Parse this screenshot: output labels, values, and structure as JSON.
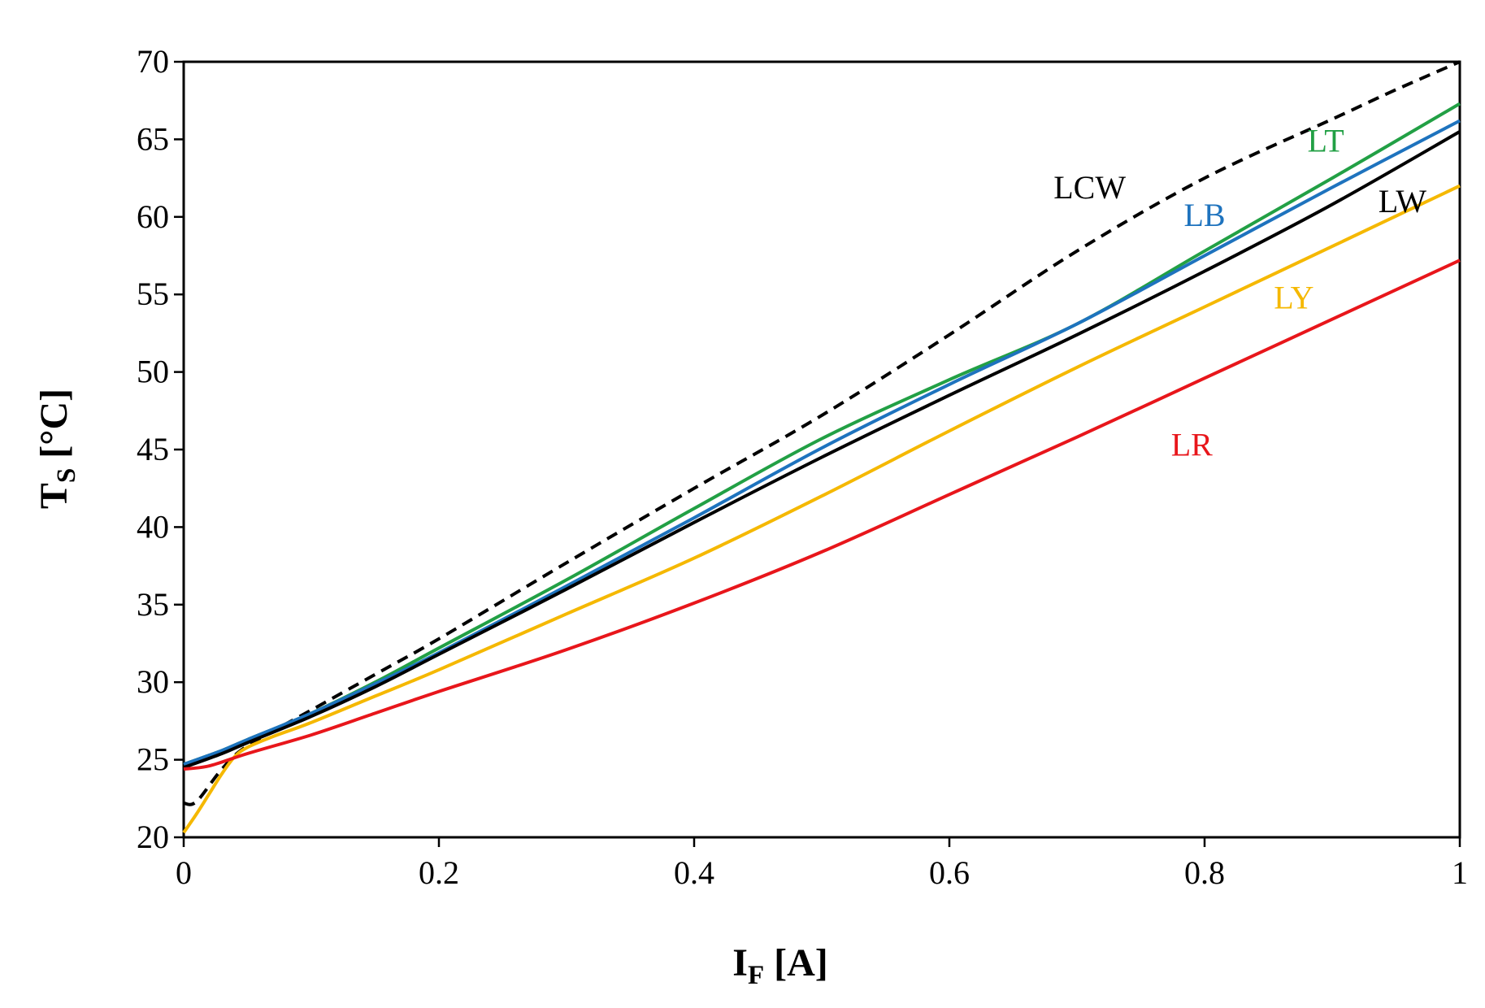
{
  "chart_data": {
    "type": "line",
    "title": "",
    "xlabel": {
      "main": "I",
      "sub": "F",
      "unit": "[A]"
    },
    "ylabel": {
      "main": "T",
      "sub": "S",
      "unit": "[°C]"
    },
    "xlim": [
      0,
      1
    ],
    "ylim": [
      20,
      70
    ],
    "xticks": [
      0,
      0.2,
      0.4,
      0.6,
      0.8,
      1
    ],
    "xtick_labels": [
      "0",
      "0.2",
      "0.4",
      "0.6",
      "0.8",
      "1"
    ],
    "yticks": [
      20,
      25,
      30,
      35,
      40,
      45,
      50,
      55,
      60,
      65,
      70
    ],
    "ytick_labels": [
      "20",
      "25",
      "30",
      "35",
      "40",
      "45",
      "50",
      "55",
      "60",
      "65",
      "70"
    ],
    "grid": false,
    "legend": "none (inline series labels)",
    "series": [
      {
        "name": "LCW",
        "color": "#000000",
        "dashed": true,
        "label_at": [
          0.71,
          61.2
        ],
        "x": [
          0,
          0.01,
          0.03,
          0.05,
          0.1,
          0.15,
          0.2,
          0.3,
          0.4,
          0.5,
          0.6,
          0.7,
          0.8,
          0.9,
          0.95,
          1
        ],
        "y": [
          22.2,
          22.3,
          24.4,
          25.9,
          28.2,
          30.5,
          32.8,
          37.7,
          42.5,
          47.2,
          52.4,
          57.8,
          62.5,
          66.3,
          68.2,
          70.0
        ]
      },
      {
        "name": "LT",
        "color": "#22A045",
        "dashed": false,
        "label_at": [
          0.895,
          64.2
        ],
        "x": [
          0,
          0.03,
          0.05,
          0.1,
          0.15,
          0.2,
          0.3,
          0.4,
          0.5,
          0.6,
          0.7,
          0.8,
          0.9,
          1
        ],
        "y": [
          24.7,
          25.6,
          26.3,
          28.0,
          30.0,
          32.2,
          36.6,
          41.2,
          45.7,
          49.5,
          53.1,
          57.8,
          62.5,
          67.3
        ]
      },
      {
        "name": "LB",
        "color": "#1E73BE",
        "dashed": false,
        "label_at": [
          0.8,
          59.4
        ],
        "x": [
          0,
          0.03,
          0.05,
          0.1,
          0.15,
          0.2,
          0.3,
          0.4,
          0.5,
          0.6,
          0.7,
          0.8,
          0.9,
          1
        ],
        "y": [
          24.7,
          25.6,
          26.3,
          28.0,
          29.9,
          31.9,
          36.2,
          40.6,
          45.1,
          49.2,
          53.1,
          57.5,
          61.9,
          66.2
        ]
      },
      {
        "name": "LW",
        "color": "#000000",
        "dashed": false,
        "label_at": [
          0.955,
          60.3
        ],
        "x": [
          0,
          0.03,
          0.05,
          0.1,
          0.15,
          0.2,
          0.3,
          0.4,
          0.5,
          0.6,
          0.7,
          0.8,
          0.9,
          1
        ],
        "y": [
          24.5,
          25.4,
          26.1,
          27.8,
          29.7,
          31.8,
          36.0,
          40.3,
          44.5,
          48.5,
          52.4,
          56.5,
          60.8,
          65.5
        ]
      },
      {
        "name": "LY",
        "color": "#F5B800",
        "dashed": false,
        "label_at": [
          0.87,
          54.1
        ],
        "x": [
          0,
          0.01,
          0.02,
          0.03,
          0.04,
          0.05,
          0.07,
          0.1,
          0.15,
          0.2,
          0.3,
          0.4,
          0.5,
          0.6,
          0.7,
          0.8,
          0.9,
          1
        ],
        "y": [
          20.3,
          21.5,
          22.8,
          24.1,
          25.2,
          25.8,
          26.5,
          27.4,
          29.1,
          30.8,
          34.4,
          38.0,
          42.0,
          46.2,
          50.3,
          54.2,
          58.1,
          62.0
        ]
      },
      {
        "name": "LR",
        "color": "#E8161B",
        "dashed": false,
        "label_at": [
          0.79,
          44.6
        ],
        "x": [
          0,
          0.02,
          0.05,
          0.1,
          0.15,
          0.2,
          0.3,
          0.4,
          0.5,
          0.6,
          0.7,
          0.8,
          0.9,
          1
        ],
        "y": [
          24.4,
          24.6,
          25.4,
          26.6,
          28.0,
          29.4,
          32.1,
          35.1,
          38.4,
          42.1,
          45.8,
          49.6,
          53.4,
          57.2
        ]
      }
    ]
  }
}
